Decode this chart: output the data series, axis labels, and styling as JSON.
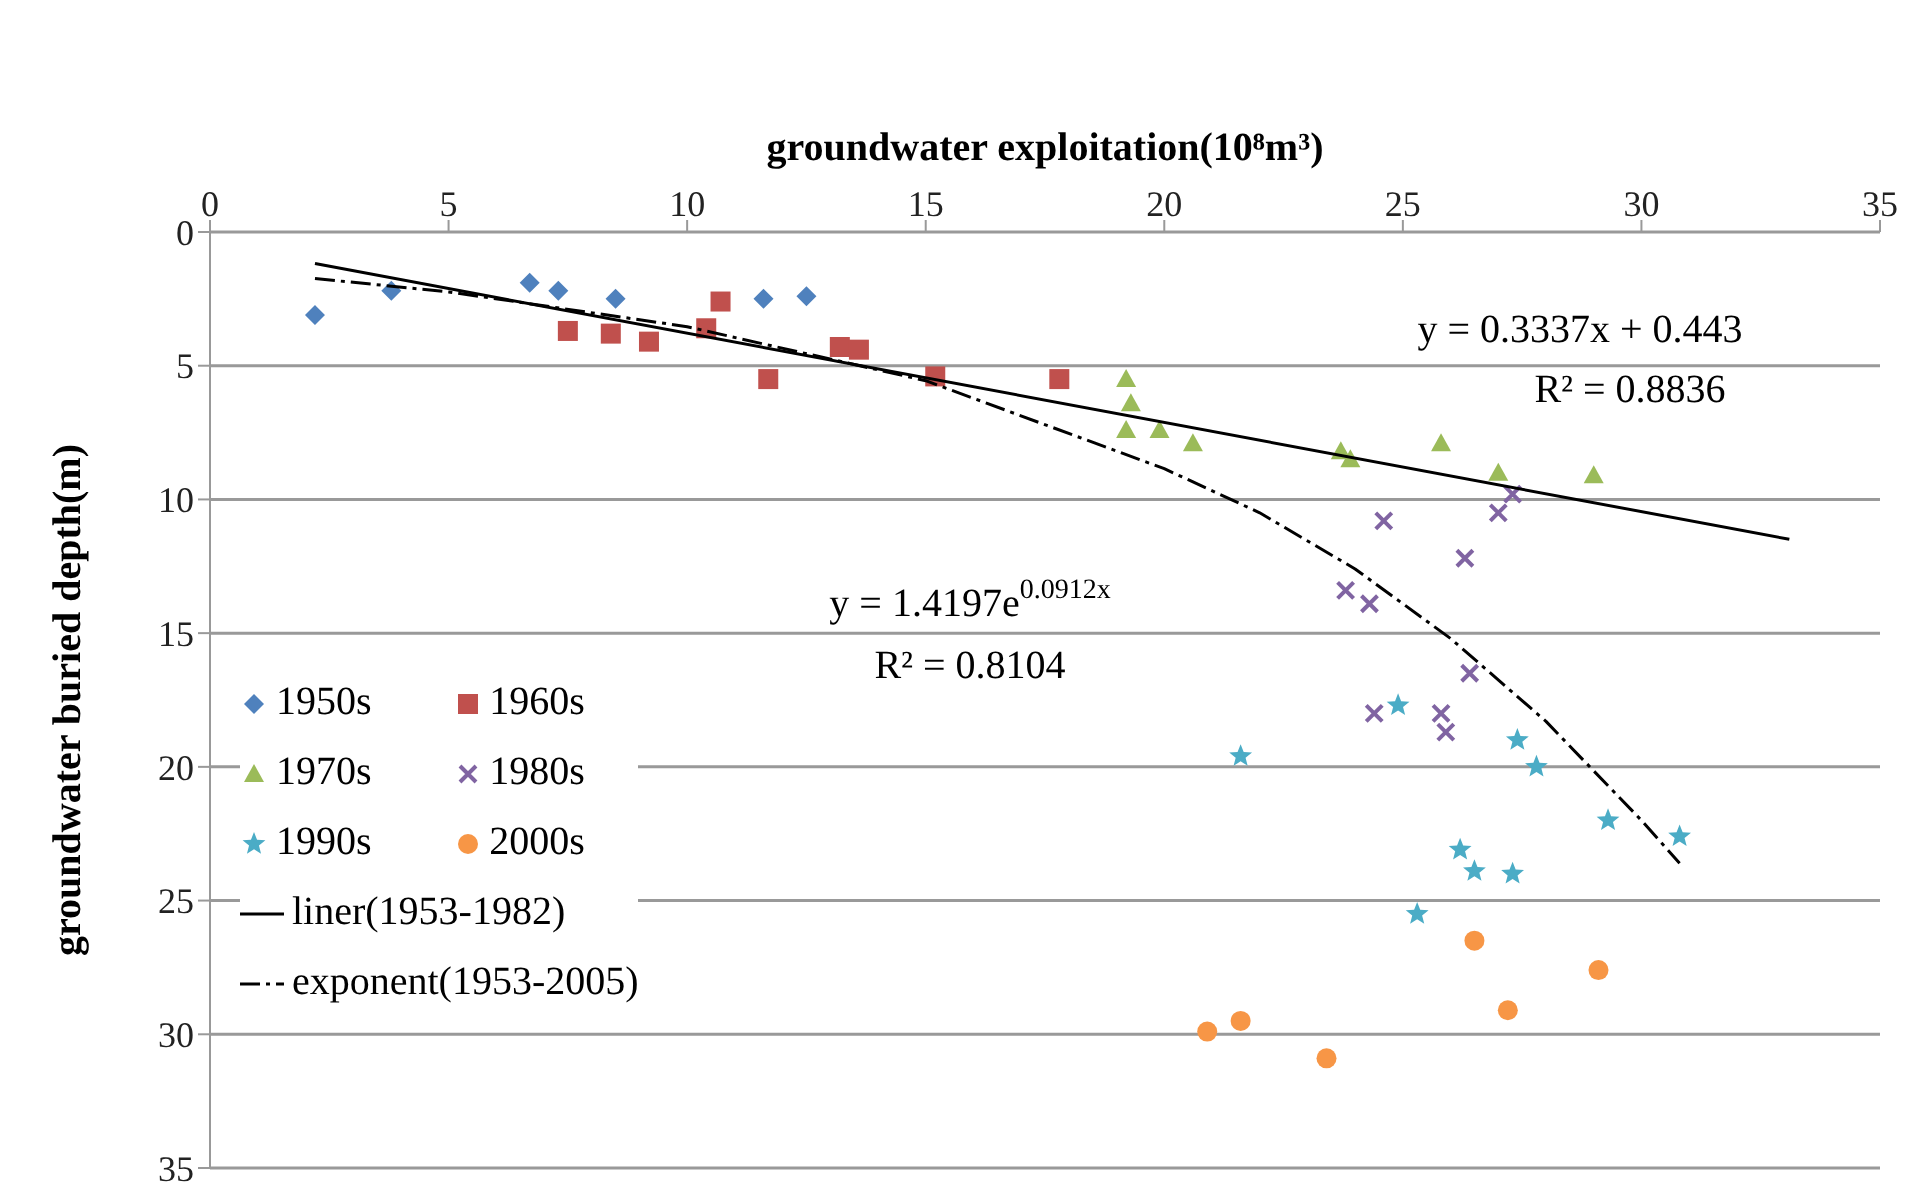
{
  "chart_data": {
    "type": "scatter",
    "xlabel": "groundwater exploitation(10⁸m³)",
    "ylabel": "groundwater buried depth(m)",
    "xlim": [
      0,
      35
    ],
    "xticks": [
      0,
      5,
      10,
      15,
      20,
      25,
      30,
      35
    ],
    "ylim": [
      35,
      0
    ],
    "yticks": [
      0,
      5,
      10,
      15,
      20,
      25,
      30,
      35
    ],
    "grid": "y",
    "legend": "bottom left",
    "series": [
      {
        "name": "1950s",
        "color": "#4f81bd",
        "marker": "diamond",
        "x": [
          2.2,
          3.8,
          6.7,
          7.3,
          8.5,
          11.6,
          12.5
        ],
        "values": [
          3.1,
          2.2,
          1.9,
          2.2,
          2.5,
          2.5,
          2.4
        ]
      },
      {
        "name": "1960s",
        "color": "#c0504d",
        "marker": "square",
        "x": [
          7.5,
          8.4,
          9.2,
          10.4,
          10.7,
          11.7,
          13.2,
          13.6,
          15.2,
          17.8
        ],
        "values": [
          3.7,
          3.8,
          4.1,
          3.6,
          2.6,
          5.5,
          4.3,
          4.4,
          5.4,
          5.5
        ]
      },
      {
        "name": "1970s",
        "color": "#9bbb59",
        "marker": "triangle",
        "x": [
          19.2,
          19.3,
          19.2,
          19.9,
          20.6,
          23.7,
          23.9,
          25.8,
          27.0,
          29.0
        ],
        "values": [
          5.5,
          6.4,
          7.4,
          7.4,
          7.9,
          8.2,
          8.5,
          7.9,
          9.0,
          9.1
        ]
      },
      {
        "name": "1980s",
        "color": "#8064a2",
        "marker": "cross",
        "x": [
          27.3,
          27.0,
          24.6,
          26.3,
          23.8,
          24.3,
          26.4,
          24.4,
          25.8,
          25.9
        ],
        "values": [
          9.8,
          10.5,
          10.8,
          12.2,
          13.4,
          13.9,
          16.5,
          18.0,
          18.0,
          18.7
        ]
      },
      {
        "name": "1990s",
        "color": "#4bacc6",
        "marker": "star",
        "x": [
          21.6,
          24.9,
          27.4,
          27.8,
          29.3,
          30.8,
          26.2,
          26.5,
          27.3,
          25.3
        ],
        "values": [
          19.6,
          17.7,
          19.0,
          20.0,
          22.0,
          22.6,
          23.1,
          23.9,
          24.0,
          25.5
        ]
      },
      {
        "name": "2000s",
        "color": "#f79646",
        "marker": "circle",
        "x": [
          20.9,
          21.6,
          23.4,
          26.5,
          27.2,
          29.1
        ],
        "values": [
          29.9,
          29.5,
          30.9,
          26.5,
          29.1,
          27.6
        ]
      },
      {
        "name": "liner(1953-1982)",
        "type": "line",
        "color": "#000000",
        "line_style": "solid",
        "marker": "none",
        "x": [
          2.2,
          33.1
        ],
        "values": [
          1.18,
          11.49
        ]
      },
      {
        "name": "exponent(1953-2005)",
        "type": "line",
        "color": "#000000",
        "line_style": "dashed",
        "marker": "none",
        "x": [
          2.2,
          5,
          10,
          15,
          20,
          22,
          24,
          26,
          28,
          30,
          30.8
        ],
        "values": [
          1.74,
          2.24,
          3.54,
          5.56,
          8.85,
          10.5,
          12.6,
          15.2,
          18.3,
          22.0,
          23.6
        ]
      }
    ],
    "annotations": [
      "y = 0.3337x + 0.443",
      "R² = 0.8836",
      "y = 1.4197e$^{0.0912x}$",
      "R² = 0.8104"
    ]
  }
}
